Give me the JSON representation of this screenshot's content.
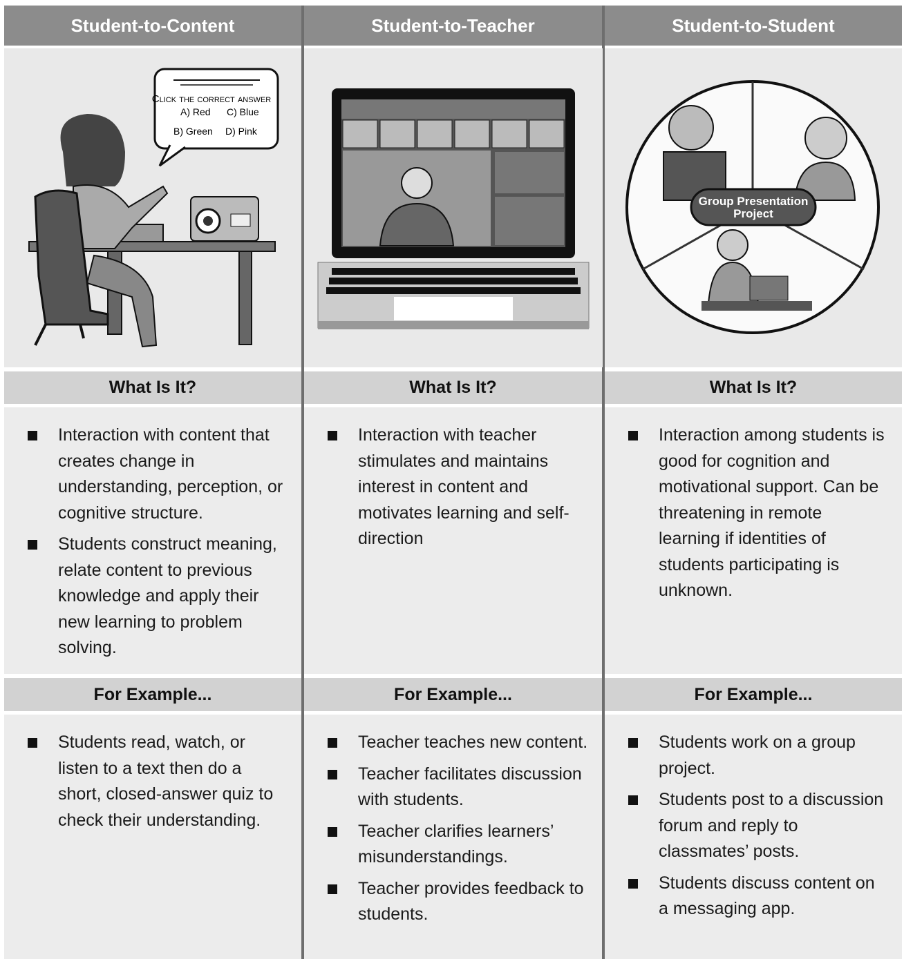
{
  "columns": [
    {
      "title": "Student-to-Content",
      "illustration": {
        "prompt": "Click the correct answer",
        "options": [
          "A) Red",
          "C) Blue",
          "B) Green",
          "D) Pink"
        ]
      },
      "what_heading": "What Is It?",
      "what": [
        "Interaction with content that creates change in understanding, perception, or cognitive structure.",
        "Students construct meaning, relate content to previous knowledge and apply their new learning to problem solving."
      ],
      "example_heading": "For Example...",
      "examples": [
        "Students read, watch, or listen to a text then do a short, closed-answer quiz to check their understanding."
      ]
    },
    {
      "title": "Student-to-Teacher",
      "what_heading": "What Is It?",
      "what": [
        "Interaction with teacher stimulates and maintains interest in content and motivates learning and self-direction"
      ],
      "example_heading": "For Example...",
      "examples": [
        "Teacher teaches new content.",
        "Teacher facilitates discussion with students.",
        "Teacher clarifies learners’ misunderstandings.",
        "Teacher provides feedback to students."
      ]
    },
    {
      "title": "Student-to-Student",
      "illustration": {
        "badge": "Group Presentation Project"
      },
      "what_heading": "What Is It?",
      "what": [
        "Interaction among students is good for cognition and motivational support. Can be threatening in remote learning if identities of students participating is unknown."
      ],
      "example_heading": "For Example...",
      "examples": [
        "Students work on a group project.",
        "Students post to a discussion forum and reply to classmates’ posts.",
        "Students discuss content on a messaging app."
      ]
    }
  ]
}
